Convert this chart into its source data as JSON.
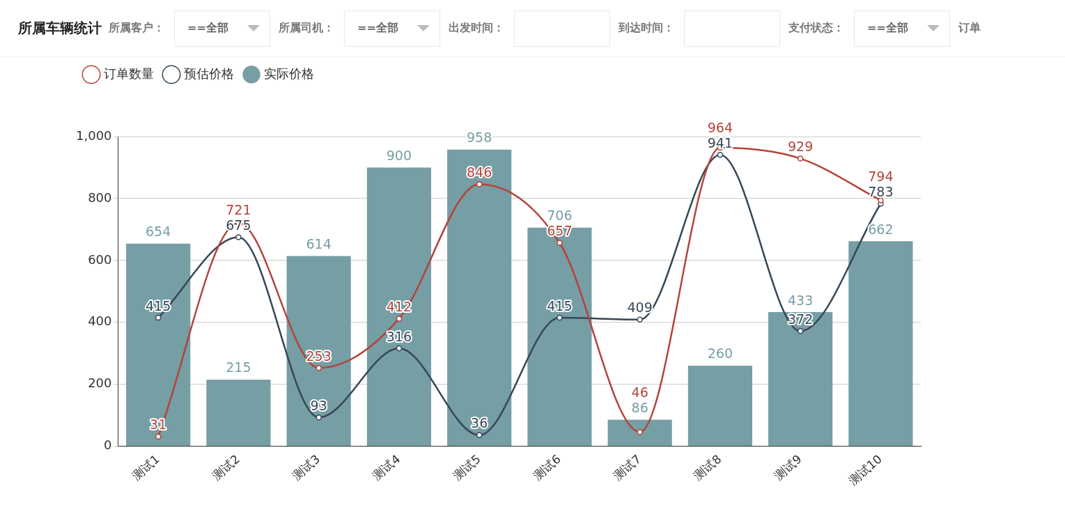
{
  "chart_data": {
    "type": "bar",
    "title": "所属车辆统计",
    "annotations": [
      "所属客户：",
      "==全部",
      "所属司机：",
      "==全部",
      "出发时间：",
      "到达时间：",
      "支付状态：",
      "==全部",
      "订单"
    ],
    "categories": [
      "测试1",
      "测试2",
      "测试3",
      "测试4",
      "测试5",
      "测试6",
      "测试7",
      "测试8",
      "测试9",
      "测试10"
    ],
    "series": [
      {
        "name": "订单数量",
        "type": "line",
        "color": "#b3433a",
        "values": [
          31,
          721,
          253,
          412,
          846,
          657,
          46,
          964,
          929,
          794
        ]
      },
      {
        "name": "预估价格",
        "type": "line",
        "color": "#364757",
        "values": [
          415,
          675,
          93,
          316,
          36,
          415,
          409,
          941,
          372,
          783
        ]
      },
      {
        "name": "实际价格",
        "color": "#769ea5",
        "values": [
          654,
          215,
          614,
          900,
          958,
          706,
          86,
          260,
          433,
          662
        ]
      }
    ],
    "ylim": [
      0,
      1000
    ],
    "yticks": [
      0,
      {
        "value": 200,
        "label": "200"
      },
      {
        "value": 400,
        "label": "400"
      },
      {
        "value": 600,
        "label": "600"
      },
      {
        "value": 800,
        "label": "800"
      },
      {
        "value": 1000,
        "label": "1,000"
      }
    ],
    "grid": "y",
    "legend": "top left",
    "marker": "circle",
    "line_style": "solid",
    "data_labels": true
  }
}
